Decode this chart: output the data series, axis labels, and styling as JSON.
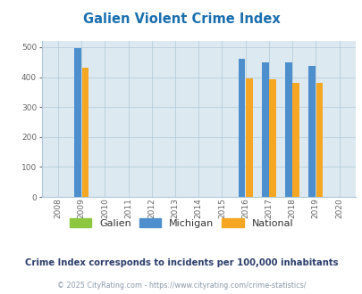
{
  "title": "Galien Violent Crime Index",
  "title_color": "#1a6faf",
  "years": [
    2008,
    2009,
    2010,
    2011,
    2012,
    2013,
    2014,
    2015,
    2016,
    2017,
    2018,
    2019,
    2020
  ],
  "galien": {
    "2009": 0
  },
  "michigan": {
    "2009": 497,
    "2016": 460,
    "2017": 450,
    "2018": 450,
    "2019": 437
  },
  "national": {
    "2009": 431,
    "2016": 397,
    "2017": 394,
    "2018": 380,
    "2019": 380
  },
  "bar_width": 0.3,
  "ylim": [
    0,
    520
  ],
  "yticks": [
    0,
    100,
    200,
    300,
    400,
    500
  ],
  "bg_color": "#dce9f0",
  "galien_color": "#8dc63f",
  "michigan_color": "#4d8fcc",
  "national_color": "#f5a623",
  "subtitle": "Crime Index corresponds to incidents per 100,000 inhabitants",
  "subtitle_color": "#2c3e6b",
  "copyright": "© 2025 CityRating.com - https://www.cityrating.com/crime-statistics/",
  "copyright_color": "#8899aa",
  "grid_color": "#b0c8d8",
  "axis_color": "#666666"
}
